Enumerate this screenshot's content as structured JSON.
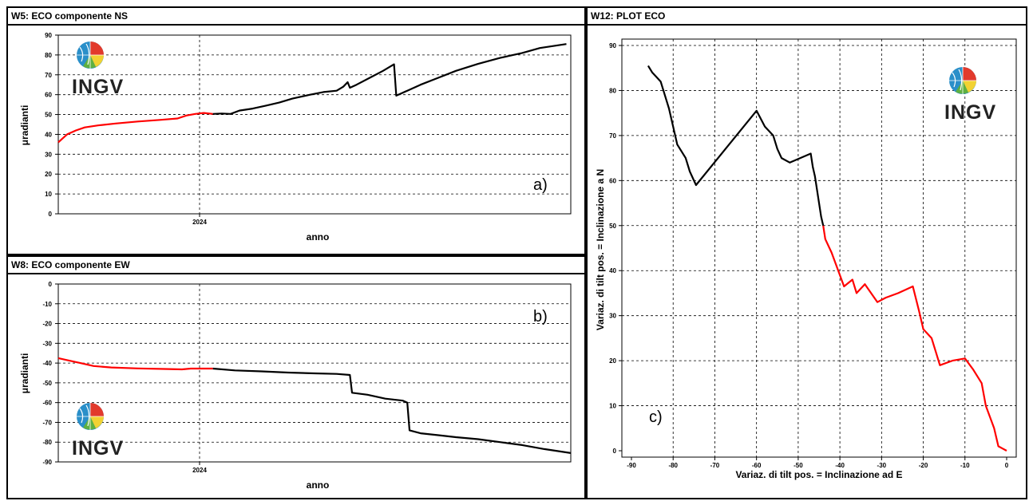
{
  "panels": {
    "w5": {
      "title": "W5: ECO componente NS"
    },
    "w8": {
      "title": "W8: ECO componente EW"
    },
    "w12": {
      "title": "W12: PLOT ECO"
    }
  },
  "logo": {
    "text": "INGV",
    "icon": "ingv-globe-logo"
  },
  "colors": {
    "pre_2024": "#ff0000",
    "post_2024": "#000000",
    "grid": "#000000"
  },
  "chart_data": [
    {
      "id": "ns",
      "type": "line",
      "title": "W5: ECO componente NS",
      "xlabel": "anno",
      "ylabel": "μradianti",
      "x_ticks": [
        "2024"
      ],
      "ylim": [
        0,
        90
      ],
      "y_ticks": [
        0,
        10,
        20,
        30,
        40,
        50,
        60,
        70,
        80,
        90
      ],
      "annotation": "a)",
      "grid": true,
      "series": [
        {
          "color": "#ff0000",
          "points": [
            [
              0,
              36
            ],
            [
              0.01,
              38
            ],
            [
              0.02,
              40
            ],
            [
              0.04,
              42
            ],
            [
              0.06,
              43.5
            ],
            [
              0.09,
              44.5
            ],
            [
              0.13,
              45.5
            ],
            [
              0.18,
              46.5
            ],
            [
              0.23,
              47.3
            ],
            [
              0.27,
              48
            ],
            [
              0.29,
              49.5
            ],
            [
              0.31,
              50.3
            ],
            [
              0.33,
              50.8
            ],
            [
              0.35,
              50.3
            ]
          ]
        },
        {
          "color": "#000000",
          "points": [
            [
              0.35,
              50.3
            ],
            [
              0.37,
              50.5
            ],
            [
              0.39,
              50.3
            ],
            [
              0.41,
              52
            ],
            [
              0.44,
              53
            ],
            [
              0.47,
              54.5
            ],
            [
              0.5,
              56
            ],
            [
              0.53,
              58
            ],
            [
              0.57,
              60
            ],
            [
              0.6,
              61.3
            ],
            [
              0.63,
              62
            ],
            [
              0.645,
              64
            ],
            [
              0.655,
              66.3
            ],
            [
              0.66,
              63.5
            ],
            [
              0.675,
              65
            ],
            [
              0.705,
              68.5
            ],
            [
              0.735,
              72
            ],
            [
              0.76,
              75.3
            ],
            [
              0.765,
              59.5
            ],
            [
              0.79,
              62
            ],
            [
              0.82,
              65
            ],
            [
              0.86,
              68.5
            ],
            [
              0.9,
              72
            ],
            [
              0.95,
              75.5
            ],
            [
              1.0,
              78.5
            ],
            [
              1.05,
              81
            ],
            [
              1.09,
              83.5
            ],
            [
              1.12,
              84.5
            ],
            [
              1.15,
              85.5
            ]
          ]
        }
      ]
    },
    {
      "id": "ew",
      "type": "line",
      "title": "W8: ECO componente EW",
      "xlabel": "anno",
      "ylabel": "μradianti",
      "x_ticks": [
        "2024"
      ],
      "ylim": [
        -90,
        0
      ],
      "y_ticks": [
        0,
        -10,
        -20,
        -30,
        -40,
        -50,
        -60,
        -70,
        -80,
        -90
      ],
      "annotation": "b)",
      "grid": true,
      "series": [
        {
          "color": "#ff0000",
          "points": [
            [
              0,
              -37.5
            ],
            [
              0.02,
              -38.5
            ],
            [
              0.05,
              -40
            ],
            [
              0.08,
              -41.5
            ],
            [
              0.12,
              -42.2
            ],
            [
              0.18,
              -42.7
            ],
            [
              0.24,
              -43
            ],
            [
              0.28,
              -43.2
            ],
            [
              0.3,
              -42.8
            ],
            [
              0.35,
              -42.8
            ]
          ]
        },
        {
          "color": "#000000",
          "points": [
            [
              0.35,
              -42.8
            ],
            [
              0.4,
              -43.7
            ],
            [
              0.46,
              -44.2
            ],
            [
              0.52,
              -44.8
            ],
            [
              0.58,
              -45.2
            ],
            [
              0.63,
              -45.5
            ],
            [
              0.66,
              -46
            ],
            [
              0.665,
              -55
            ],
            [
              0.7,
              -56
            ],
            [
              0.74,
              -58
            ],
            [
              0.78,
              -59
            ],
            [
              0.79,
              -60
            ],
            [
              0.795,
              -74
            ],
            [
              0.82,
              -75.5
            ],
            [
              0.86,
              -76.5
            ],
            [
              0.9,
              -77.5
            ],
            [
              0.95,
              -78.5
            ],
            [
              1.0,
              -80
            ],
            [
              1.05,
              -81.5
            ],
            [
              1.1,
              -83.5
            ],
            [
              1.13,
              -84.5
            ],
            [
              1.16,
              -85.5
            ]
          ]
        }
      ]
    },
    {
      "id": "plot",
      "type": "line",
      "title": "W12: PLOT ECO",
      "xlabel": "Variaz. di tilt pos. = Inclinazione ad E",
      "ylabel": "Variaz. di tilt pos. = Inclinazione a N",
      "xlim": [
        -90,
        0
      ],
      "ylim": [
        0,
        90
      ],
      "x_ticks": [
        -90,
        -80,
        -70,
        -60,
        -50,
        -40,
        -30,
        -20,
        -10,
        0
      ],
      "y_ticks": [
        0,
        10,
        20,
        30,
        40,
        50,
        60,
        70,
        80,
        90
      ],
      "annotation": "c)",
      "grid": true,
      "series": [
        {
          "color": "#ff0000",
          "points": [
            [
              0,
              0
            ],
            [
              -1,
              0.5
            ],
            [
              -2,
              1
            ],
            [
              -3,
              5
            ],
            [
              -5,
              10
            ],
            [
              -6,
              15
            ],
            [
              -8,
              18
            ],
            [
              -10,
              20.5
            ],
            [
              -13,
              20
            ],
            [
              -16,
              19
            ],
            [
              -17,
              22
            ],
            [
              -18,
              25
            ],
            [
              -20,
              27
            ],
            [
              -21,
              31
            ],
            [
              -22.5,
              36.5
            ],
            [
              -26,
              35
            ],
            [
              -29,
              34
            ],
            [
              -31,
              33
            ],
            [
              -34,
              37
            ],
            [
              -36,
              35
            ],
            [
              -37,
              38
            ],
            [
              -39,
              36.5
            ],
            [
              -41,
              41.5
            ],
            [
              -42,
              44
            ],
            [
              -43.5,
              47
            ],
            [
              -44,
              50
            ]
          ]
        },
        {
          "color": "#000000",
          "points": [
            [
              -44,
              50
            ],
            [
              -44.5,
              52
            ],
            [
              -45,
              55
            ],
            [
              -45.5,
              58
            ],
            [
              -46,
              61
            ],
            [
              -46.5,
              63
            ],
            [
              -47,
              66
            ],
            [
              -52,
              64
            ],
            [
              -54,
              65
            ],
            [
              -55,
              67
            ],
            [
              -56,
              70
            ],
            [
              -58,
              72
            ],
            [
              -60,
              75.5
            ],
            [
              -74.5,
              59
            ],
            [
              -76,
              62
            ],
            [
              -77,
              65
            ],
            [
              -79,
              68
            ],
            [
              -80,
              72
            ],
            [
              -81,
              76
            ],
            [
              -83,
              82
            ],
            [
              -84,
              83
            ],
            [
              -85,
              84
            ],
            [
              -86,
              85.5
            ]
          ]
        }
      ]
    }
  ]
}
